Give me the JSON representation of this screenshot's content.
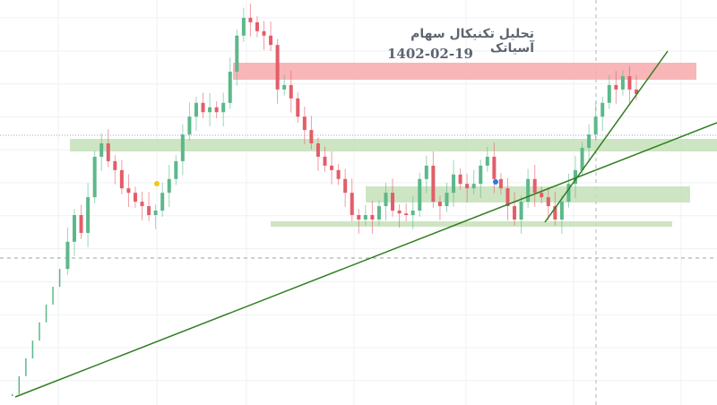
{
  "chart_data": {
    "type": "candlestick",
    "title": "تحلیل تکنیکال سهام آسیاتک",
    "subtitle": "1402-02-19",
    "ylim": [
      0,
      100
    ],
    "grid": true,
    "colors": {
      "up": "#5cb88a",
      "down": "#e35d68",
      "resistance_zone": "#f7aeb0",
      "support_zone": "#c5e0b8",
      "trendline": "#2f7d1e"
    },
    "closes": [
      2.7,
      7.1,
      11.5,
      15.9,
      20.4,
      24.8,
      29.2,
      33.6,
      40.3,
      46.9,
      42.5,
      51.3,
      61.3,
      64.6,
      60.2,
      58.0,
      53.5,
      52.4,
      50.2,
      49.1,
      46.9,
      48.0,
      52.4,
      55.8,
      60.2,
      66.8,
      71.2,
      74.6,
      72.3,
      73.5,
      72.3,
      74.6,
      82.3,
      91.2,
      95.6,
      94.5,
      92.3,
      91.2,
      88.9,
      77.9,
      79.0,
      75.7,
      71.2,
      67.9,
      64.6,
      61.3,
      59.1,
      58.0,
      55.8,
      52.4,
      46.9,
      45.8,
      46.9,
      45.8,
      49.1,
      52.4,
      48.0,
      47.3,
      46.9,
      48.0,
      55.8,
      59.1,
      50.2,
      49.1,
      52.4,
      56.9,
      54.6,
      53.5,
      54.6,
      59.1,
      61.3,
      55.8,
      53.5,
      49.1,
      45.8,
      50.2,
      55.8,
      52.4,
      51.3,
      49.1,
      45.8,
      50.2,
      54.6,
      58.0,
      63.5,
      66.8,
      71.2,
      74.6,
      79.0,
      77.9,
      81.2,
      77.9,
      76.8
    ]
  }
}
